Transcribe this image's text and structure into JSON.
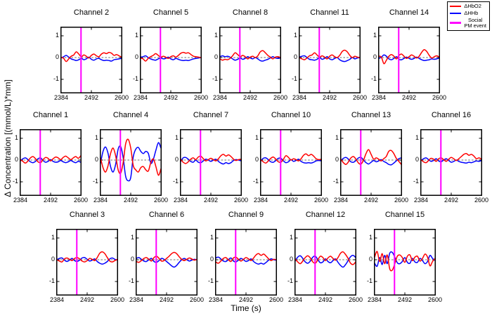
{
  "figure": {
    "ylabel": "Δ Concentration [(mmol/L)*mm]",
    "xlabel": "Time (s)"
  },
  "legend": {
    "items": [
      {
        "label": "ΔHbO2",
        "color": "#ff0000"
      },
      {
        "label": "ΔHHb",
        "color": "#0000ff"
      },
      {
        "label_lines": [
          "Social",
          "PM event"
        ],
        "color": "#ff00ff"
      }
    ]
  },
  "chart_data": {
    "type": "line",
    "title": "",
    "xlabel": "Time (s)",
    "ylabel": "Δ Concentration [(mmol/L)*mm]",
    "x_range": [
      2384,
      2600
    ],
    "y_range": [
      -1.45,
      1.45
    ],
    "x_ticks": [
      2384,
      2492,
      2600
    ],
    "y_ticks": [
      1,
      0,
      -1
    ],
    "grid": false,
    "legend_position": "top-right",
    "series_names": [
      "ΔHbO2",
      "ΔHHb"
    ],
    "colors": {
      "hbo": "#ff0000",
      "hhb": "#0000ff",
      "event": "#ff00ff",
      "zero_line": "#444444"
    },
    "event_line_x": 2455,
    "event_label": "Social PM event",
    "zero_line_dashed": true,
    "rows": [
      [
        "Channel 2",
        "Channel 5",
        "Channel 8",
        "Channel 11",
        "Channel 14"
      ],
      [
        "Channel 1",
        "Channel 4",
        "Channel 7",
        "Channel 10",
        "Channel 13",
        "Channel 16"
      ],
      [
        "Channel 3",
        "Channel 6",
        "Channel 9",
        "Channel 12",
        "Channel 15"
      ]
    ],
    "panels": [
      {
        "title": "Channel 1",
        "hbo": [
          0.02,
          -0.06,
          -0.14,
          -0.04,
          0.1,
          0.16,
          0.06,
          -0.08,
          -0.12,
          0.02,
          0.12,
          0.08,
          -0.04,
          0.06,
          0.14,
          0.1,
          0.02,
          0.12,
          0.18,
          0.1,
          0.02,
          0.1,
          0.16,
          0.08,
          0.2
        ],
        "hhb": [
          -0.04,
          0.06,
          0.1,
          0.02,
          -0.08,
          -0.12,
          -0.06,
          0.06,
          0.1,
          -0.02,
          -0.1,
          -0.06,
          0.02,
          -0.06,
          -0.1,
          -0.08,
          -0.02,
          -0.08,
          -0.12,
          -0.08,
          -0.02,
          -0.08,
          -0.12,
          -0.06,
          -0.1
        ]
      },
      {
        "title": "Channel 2",
        "hbo": [
          0.02,
          -0.04,
          -0.18,
          -0.06,
          0.06,
          0.12,
          0.26,
          0.16,
          0.04,
          0.12,
          0.06,
          -0.02,
          0.1,
          0.16,
          0.08,
          0.04,
          0.16,
          0.22,
          0.18,
          0.24,
          0.2,
          0.1,
          0.14,
          0.08,
          0.02
        ],
        "hhb": [
          -0.02,
          0.04,
          0.1,
          0.02,
          -0.06,
          -0.1,
          -0.14,
          -0.1,
          -0.04,
          -0.1,
          -0.06,
          0.02,
          -0.08,
          -0.12,
          -0.06,
          -0.04,
          -0.1,
          -0.14,
          -0.12,
          -0.14,
          -0.16,
          -0.1,
          -0.08,
          -0.06,
          -0.04
        ]
      },
      {
        "title": "Channel 3",
        "hbo": [
          0.0,
          -0.06,
          -0.1,
          0.04,
          0.08,
          0.02,
          -0.04,
          0.06,
          0.1,
          0.04,
          -0.06,
          -0.1,
          -0.04,
          0.06,
          0.02,
          -0.04,
          0.1,
          0.3,
          0.36,
          0.28,
          0.1,
          -0.06,
          -0.1,
          -0.04,
          0.02
        ],
        "hhb": [
          0.0,
          0.06,
          0.08,
          -0.02,
          -0.08,
          -0.02,
          0.06,
          -0.04,
          -0.08,
          -0.02,
          0.08,
          0.1,
          0.02,
          -0.06,
          -0.02,
          0.04,
          -0.08,
          -0.16,
          -0.2,
          -0.16,
          -0.08,
          0.04,
          0.08,
          0.02,
          -0.02
        ]
      },
      {
        "title": "Channel 4",
        "hbo": [
          0.1,
          -0.35,
          -0.55,
          -0.25,
          0.3,
          0.55,
          0.2,
          -0.45,
          -0.6,
          -0.1,
          0.75,
          0.95,
          0.55,
          -0.25,
          -0.45,
          -0.55,
          -0.35,
          -0.3,
          -0.45,
          -0.5,
          -0.1,
          0.05,
          -0.3,
          -0.7,
          -0.4
        ],
        "hhb": [
          -0.15,
          0.4,
          0.6,
          0.3,
          -0.3,
          -0.55,
          -0.2,
          0.5,
          0.62,
          0.1,
          -0.75,
          -0.95,
          -0.8,
          0.15,
          0.5,
          0.58,
          0.4,
          0.3,
          0.4,
          0.3,
          -0.15,
          0.05,
          0.45,
          0.8,
          0.55
        ]
      },
      {
        "title": "Channel 5",
        "hbo": [
          -0.02,
          -0.06,
          -0.16,
          -0.04,
          0.04,
          0.1,
          0.18,
          0.1,
          0.02,
          0.06,
          0.02,
          -0.04,
          0.04,
          0.08,
          0.02,
          0.1,
          0.2,
          0.24,
          0.2,
          0.22,
          0.14,
          0.06,
          0.04,
          0.02,
          0.0
        ],
        "hhb": [
          0.02,
          0.04,
          0.08,
          0.0,
          -0.06,
          -0.1,
          -0.12,
          -0.06,
          -0.02,
          -0.06,
          -0.04,
          0.02,
          -0.06,
          -0.1,
          -0.04,
          -0.08,
          -0.12,
          -0.14,
          -0.12,
          -0.14,
          -0.1,
          -0.06,
          -0.04,
          -0.02,
          0.0
        ]
      },
      {
        "title": "Channel 6",
        "hbo": [
          -0.08,
          -0.12,
          -0.04,
          0.06,
          0.1,
          0.02,
          -0.06,
          0.1,
          0.16,
          0.06,
          -0.06,
          -0.04,
          0.06,
          0.16,
          0.28,
          0.34,
          0.28,
          0.14,
          0.02,
          -0.04,
          0.02,
          0.08,
          0.04,
          -0.02,
          0.02
        ],
        "hhb": [
          0.06,
          0.1,
          0.02,
          -0.06,
          -0.08,
          0.0,
          0.06,
          -0.08,
          -0.12,
          -0.04,
          0.06,
          0.02,
          -0.08,
          -0.18,
          -0.28,
          -0.34,
          -0.26,
          -0.12,
          0.0,
          0.06,
          0.0,
          -0.06,
          -0.02,
          0.02,
          0.0
        ]
      },
      {
        "title": "Channel 7",
        "hbo": [
          0.04,
          -0.1,
          -0.16,
          -0.08,
          0.04,
          0.1,
          0.02,
          0.14,
          0.18,
          0.06,
          -0.04,
          0.02,
          0.08,
          0.02,
          -0.04,
          0.06,
          0.2,
          0.26,
          0.18,
          0.24,
          0.16,
          0.04,
          -0.02,
          0.02,
          0.04
        ],
        "hhb": [
          -0.06,
          0.1,
          0.12,
          0.04,
          -0.06,
          -0.1,
          0.0,
          -0.1,
          -0.12,
          -0.04,
          0.04,
          0.0,
          -0.06,
          0.0,
          0.04,
          -0.06,
          -0.14,
          -0.18,
          -0.12,
          -0.16,
          -0.12,
          -0.02,
          0.02,
          0.0,
          -0.04
        ]
      },
      {
        "title": "Channel 8",
        "hbo": [
          -0.06,
          -0.12,
          -0.08,
          -0.1,
          -0.04,
          0.08,
          0.22,
          0.14,
          0.04,
          0.1,
          0.04,
          -0.06,
          0.02,
          0.06,
          0.0,
          0.08,
          0.26,
          0.32,
          0.22,
          0.1,
          0.02,
          -0.06,
          0.02,
          0.04,
          0.0
        ],
        "hhb": [
          0.04,
          0.08,
          0.04,
          0.06,
          0.02,
          -0.06,
          -0.12,
          -0.08,
          -0.02,
          -0.08,
          -0.04,
          0.04,
          -0.02,
          -0.06,
          0.0,
          -0.06,
          -0.14,
          -0.16,
          -0.12,
          -0.08,
          -0.02,
          0.04,
          -0.02,
          -0.04,
          -0.02
        ]
      },
      {
        "title": "Channel 9",
        "hbo": [
          -0.1,
          -0.16,
          -0.06,
          0.06,
          0.1,
          0.0,
          -0.08,
          0.08,
          0.12,
          0.02,
          -0.06,
          0.02,
          0.1,
          0.04,
          -0.04,
          0.08,
          0.22,
          0.28,
          0.2,
          0.26,
          0.16,
          0.04,
          -0.04,
          0.02,
          0.0
        ],
        "hhb": [
          0.08,
          0.12,
          0.04,
          -0.06,
          -0.08,
          0.0,
          0.08,
          -0.06,
          -0.1,
          -0.02,
          0.06,
          0.0,
          -0.08,
          -0.04,
          0.04,
          -0.08,
          -0.16,
          -0.2,
          -0.16,
          -0.2,
          -0.12,
          -0.02,
          0.04,
          0.0,
          -0.02
        ]
      },
      {
        "title": "Channel 10",
        "hbo": [
          0.02,
          -0.08,
          -0.14,
          -0.04,
          0.08,
          0.14,
          0.04,
          -0.08,
          -0.1,
          0.04,
          0.2,
          0.12,
          0.0,
          0.06,
          0.02,
          -0.04,
          0.06,
          0.22,
          0.28,
          0.2,
          0.26,
          0.18,
          0.06,
          0.02,
          0.04
        ],
        "hhb": [
          -0.04,
          0.08,
          0.1,
          0.02,
          -0.08,
          -0.1,
          -0.02,
          0.08,
          0.08,
          -0.04,
          -0.12,
          -0.08,
          0.02,
          -0.06,
          -0.02,
          0.04,
          -0.06,
          -0.12,
          -0.14,
          -0.12,
          -0.14,
          -0.1,
          -0.04,
          -0.02,
          -0.04
        ]
      },
      {
        "title": "Channel 11",
        "hbo": [
          0.0,
          -0.06,
          -0.1,
          -0.02,
          0.08,
          0.12,
          0.22,
          0.12,
          0.02,
          0.08,
          0.02,
          -0.06,
          0.06,
          0.12,
          0.04,
          0.0,
          0.1,
          0.28,
          0.34,
          0.26,
          0.1,
          0.0,
          0.06,
          0.02,
          0.0
        ],
        "hhb": [
          0.02,
          0.06,
          0.08,
          0.0,
          -0.08,
          -0.1,
          -0.12,
          -0.08,
          0.0,
          -0.08,
          -0.04,
          0.04,
          -0.06,
          -0.1,
          -0.04,
          0.0,
          -0.1,
          -0.16,
          -0.18,
          -0.14,
          -0.08,
          0.0,
          -0.06,
          -0.02,
          0.0
        ]
      },
      {
        "title": "Channel 12",
        "hbo": [
          0.04,
          -0.1,
          -0.18,
          -0.06,
          0.1,
          0.18,
          0.08,
          -0.1,
          -0.16,
          0.0,
          0.16,
          0.1,
          -0.04,
          0.08,
          0.16,
          0.06,
          -0.02,
          0.1,
          0.3,
          0.36,
          0.24,
          0.06,
          -0.16,
          -0.22,
          -0.1
        ],
        "hhb": [
          -0.06,
          0.12,
          0.18,
          0.06,
          -0.1,
          -0.16,
          -0.06,
          0.12,
          0.16,
          0.0,
          -0.14,
          -0.1,
          0.04,
          -0.08,
          -0.14,
          -0.04,
          0.04,
          -0.12,
          -0.26,
          -0.34,
          -0.22,
          -0.04,
          0.14,
          0.2,
          0.1
        ]
      },
      {
        "title": "Channel 13",
        "hbo": [
          0.04,
          -0.12,
          -0.2,
          -0.08,
          0.1,
          0.16,
          0.04,
          -0.14,
          -0.18,
          0.0,
          0.3,
          0.48,
          0.26,
          0.04,
          0.1,
          0.04,
          -0.04,
          0.06,
          0.16,
          0.4,
          0.44,
          0.3,
          0.08,
          -0.06,
          -0.2
        ],
        "hhb": [
          -0.04,
          0.08,
          0.12,
          0.04,
          -0.08,
          -0.1,
          -0.02,
          0.1,
          0.12,
          0.0,
          -0.12,
          -0.18,
          -0.1,
          -0.02,
          -0.08,
          -0.04,
          0.02,
          -0.06,
          -0.12,
          -0.2,
          -0.22,
          -0.14,
          -0.04,
          0.06,
          0.1
        ]
      },
      {
        "title": "Channel 14",
        "hbo": [
          0.06,
          0.02,
          -0.28,
          -0.12,
          0.06,
          0.14,
          0.06,
          -0.06,
          0.1,
          0.16,
          0.06,
          -0.04,
          0.04,
          0.12,
          0.06,
          -0.02,
          0.06,
          0.24,
          0.36,
          0.28,
          0.1,
          -0.02,
          0.04,
          0.08,
          0.02
        ],
        "hhb": [
          -0.04,
          0.02,
          0.12,
          0.06,
          -0.06,
          -0.1,
          -0.04,
          0.04,
          -0.08,
          -0.1,
          -0.04,
          0.02,
          -0.04,
          -0.08,
          -0.04,
          0.02,
          -0.04,
          -0.1,
          -0.14,
          -0.12,
          -0.1,
          -0.06,
          -0.08,
          -0.06,
          -0.02
        ]
      },
      {
        "title": "Channel 15",
        "hbo": [
          0.12,
          0.38,
          -0.08,
          0.28,
          -0.18,
          0.22,
          -0.42,
          -0.48,
          -0.18,
          0.16,
          0.22,
          0.1,
          -0.12,
          0.16,
          0.22,
          -0.04,
          0.12,
          0.16,
          -0.06,
          0.06,
          0.26,
          0.12,
          -0.28,
          -0.08,
          0.06
        ],
        "hhb": [
          -0.16,
          -0.3,
          0.1,
          -0.22,
          0.2,
          -0.18,
          0.3,
          0.34,
          0.12,
          -0.14,
          -0.18,
          -0.08,
          0.1,
          -0.12,
          -0.16,
          0.06,
          -0.1,
          -0.12,
          0.06,
          -0.04,
          -0.18,
          -0.08,
          0.2,
          0.06,
          -0.04
        ]
      },
      {
        "title": "Channel 16",
        "hbo": [
          0.02,
          -0.08,
          -0.12,
          -0.02,
          0.08,
          0.04,
          -0.06,
          0.06,
          0.1,
          0.02,
          -0.06,
          0.04,
          0.12,
          0.06,
          -0.02,
          0.06,
          0.16,
          0.26,
          0.3,
          0.22,
          0.26,
          0.18,
          0.06,
          0.1,
          0.04
        ],
        "hhb": [
          -0.02,
          0.06,
          0.1,
          0.02,
          -0.06,
          -0.02,
          0.06,
          -0.04,
          -0.08,
          0.0,
          0.06,
          -0.02,
          -0.1,
          -0.06,
          0.0,
          -0.06,
          -0.1,
          -0.12,
          -0.14,
          -0.1,
          -0.12,
          -0.08,
          -0.04,
          -0.06,
          -0.02
        ]
      }
    ]
  }
}
